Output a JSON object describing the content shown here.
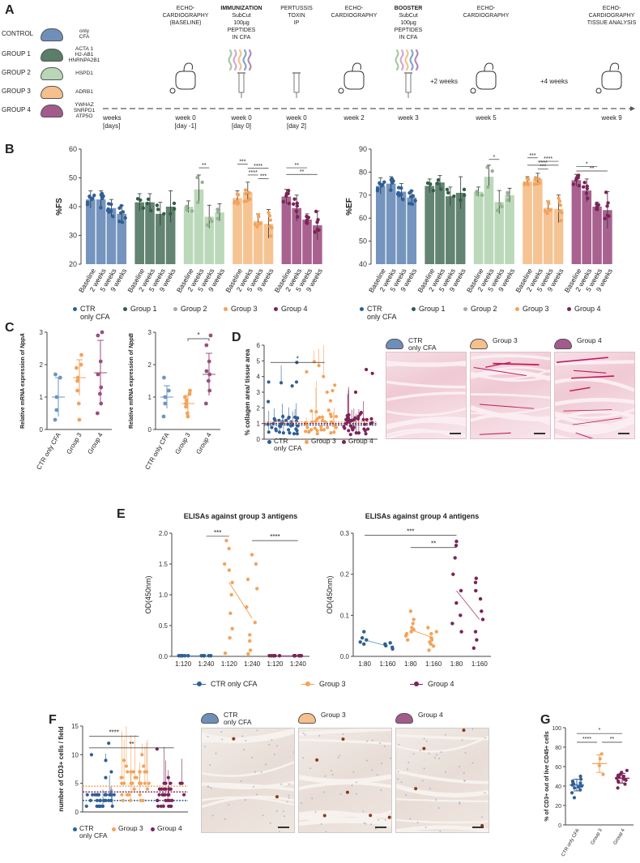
{
  "panel_a": {
    "letter": "A",
    "groups": [
      {
        "name": "CONTROL",
        "antigen": "only\nCFA",
        "color": "#6e8fba"
      },
      {
        "name": "GROUP 1",
        "antigen": "ACTA 1\nH2-AB1\nHNRNPA2B1",
        "color": "#5b7d6a"
      },
      {
        "name": "GROUP 2",
        "antigen": "HSPD1",
        "color": "#b7d7b6"
      },
      {
        "name": "GROUP 3",
        "antigen": "ADRB1",
        "color": "#f5c08c"
      },
      {
        "name": "GROUP 4",
        "antigen": "YWHAZ\nSNRPD1\nATP5O",
        "color": "#a45a8a"
      }
    ],
    "timeline": [
      {
        "header": "ECHO-\nCARDIOGRAPHY\n(BASELINE)",
        "bold": "",
        "label": "week 0\n[day -1]",
        "icon": "echo"
      },
      {
        "header": "SubCut\n100µg\nPEPTIDES\nIN CFA",
        "bold": "IMMUNIZATION",
        "label": "week 0\n[day 0]",
        "icon": "syringe-peptides"
      },
      {
        "header": "PERTUSSIS\nTOXIN\nIP",
        "bold": "",
        "label": "week 0\n[day 2]",
        "icon": "syringe"
      },
      {
        "header": "ECHO-\nCARDIOGRAPHY",
        "bold": "",
        "label": "week 2",
        "icon": "echo"
      },
      {
        "header": "SubCut\n100µg\nPEPTIDES\nIN CFA",
        "bold": "BOOSTER",
        "label": "week 3",
        "icon": "syringe-peptides"
      },
      {
        "header": "ECHO-\nCARDIOGRAPHY",
        "bold": "",
        "label": "week 5",
        "icon": "echo"
      },
      {
        "header": "ECHO-\nCARDIOGRAPHY\n\nTISSUE ANALYSIS",
        "bold": "",
        "label": "week 9",
        "icon": "echo"
      }
    ],
    "axis_label": "weeks\n[days]",
    "intervals": [
      "+2 weeks",
      "+4 weeks"
    ]
  },
  "panel_b": {
    "letter": "B",
    "legend": [
      {
        "label": "CTR\nonly CFA",
        "color": "#2f5f97"
      },
      {
        "label": "Group 1",
        "color": "#2f6045"
      },
      {
        "label": "Group 2",
        "color": "#a7a7a7"
      },
      {
        "label": "Group 3",
        "color": "#f3a35a"
      },
      {
        "label": "Group 4",
        "color": "#7c2457"
      }
    ],
    "timepoints": [
      "Baseline",
      "2 weeks",
      "5 weeks",
      "9 weeks"
    ]
  },
  "chart_data": [
    {
      "id": "fs",
      "type": "bar",
      "title": "",
      "ylabel": "%FS",
      "ylim": [
        20,
        60
      ],
      "yticks": [
        20,
        30,
        40,
        50,
        60
      ],
      "categories": [
        "Baseline",
        "2 weeks",
        "5 weeks",
        "9 weeks"
      ],
      "series": [
        {
          "name": "CTR only CFA",
          "color": "#6e8fba",
          "dot": "#2f5f97",
          "values": [
            42.5,
            42.5,
            39.5,
            37.5
          ],
          "sd": [
            3,
            3,
            3,
            3
          ]
        },
        {
          "name": "Group 1",
          "color": "#5b7d6a",
          "dot": "#2f6045",
          "values": [
            41.5,
            41.5,
            37.5,
            40
          ],
          "sd": [
            3,
            3,
            4,
            5.5
          ]
        },
        {
          "name": "Group 2",
          "color": "#b7d7b6",
          "dot": "#96b394",
          "values": [
            40,
            46,
            36.5,
            38
          ],
          "sd": [
            2,
            5,
            4,
            3
          ]
        },
        {
          "name": "Group 3",
          "color": "#f5c08c",
          "dot": "#f3a35a",
          "values": [
            43,
            45,
            35,
            34
          ],
          "sd": [
            2.5,
            3.5,
            2.5,
            5
          ]
        },
        {
          "name": "Group 4",
          "color": "#a45a8a",
          "dot": "#7c2457",
          "values": [
            43.5,
            39.5,
            35.5,
            33.5
          ],
          "sd": [
            2.5,
            4.5,
            2,
            5
          ]
        }
      ],
      "significance": [
        {
          "group": 2,
          "from": 1,
          "to": 2,
          "level": 53.5,
          "label": "**"
        },
        {
          "group": 3,
          "from": 0,
          "to": 1,
          "level": 54.8,
          "label": "***"
        },
        {
          "group": 3,
          "from": 1,
          "to": 3,
          "level": 53.3,
          "label": "****"
        },
        {
          "group": 3,
          "from": 1,
          "to": 2,
          "level": 51.0,
          "label": "****"
        },
        {
          "group": 3,
          "from": 2,
          "to": 3,
          "level": 49.7,
          "label": "***"
        },
        {
          "group": 4,
          "from": 0,
          "to": 2,
          "level": 53.5,
          "label": "**"
        },
        {
          "group": 4,
          "from": 0,
          "to": 3,
          "level": 51.2,
          "label": "**"
        }
      ]
    },
    {
      "id": "ef",
      "type": "bar",
      "title": "",
      "ylabel": "%EF",
      "ylim": [
        40,
        90
      ],
      "yticks": [
        40,
        50,
        60,
        70,
        80,
        90
      ],
      "categories": [
        "Baseline",
        "2 weeks",
        "5 weeks",
        "9 weeks"
      ],
      "series": [
        {
          "name": "CTR only CFA",
          "color": "#6e8fba",
          "dot": "#2f5f97",
          "values": [
            74,
            75,
            71.5,
            69
          ],
          "sd": [
            3.5,
            3,
            3.5,
            3
          ]
        },
        {
          "name": "Group 1",
          "color": "#5b7d6a",
          "dot": "#2f6045",
          "values": [
            74,
            75.5,
            69.5,
            71
          ],
          "sd": [
            3,
            3,
            4,
            7
          ]
        },
        {
          "name": "Group 2",
          "color": "#b7d7b6",
          "dot": "#96b394",
          "values": [
            71.5,
            78,
            67,
            70
          ],
          "sd": [
            2,
            5,
            5,
            3
          ]
        },
        {
          "name": "Group 3",
          "color": "#f5c08c",
          "dot": "#f3a35a",
          "values": [
            76,
            77,
            64.5,
            64
          ],
          "sd": [
            2,
            2.5,
            3,
            6
          ]
        },
        {
          "name": "Group 4",
          "color": "#a45a8a",
          "dot": "#7c2457",
          "values": [
            76.5,
            72,
            65,
            63.5
          ],
          "sd": [
            2.5,
            5,
            2,
            8
          ]
        }
      ],
      "significance": [
        {
          "group": 2,
          "from": 1,
          "to": 2,
          "level": 85.5,
          "label": "*"
        },
        {
          "group": 3,
          "from": 0,
          "to": 1,
          "level": 86.2,
          "label": "***"
        },
        {
          "group": 3,
          "from": 1,
          "to": 3,
          "level": 84.7,
          "label": "****"
        },
        {
          "group": 3,
          "from": 0,
          "to": 3,
          "level": 83.0,
          "label": "****"
        },
        {
          "group": 3,
          "from": 1,
          "to": 2,
          "level": 81.3,
          "label": "***"
        },
        {
          "group": 4,
          "from": 0,
          "to": 2,
          "level": 82.5,
          "label": "*"
        },
        {
          "group": 4,
          "from": 0,
          "to": 3,
          "level": 80.5,
          "label": "**"
        }
      ]
    },
    {
      "id": "nppa",
      "type": "scatter",
      "ylabel": "Relative mRNA expression of NppA",
      "ylabel_prefix": "Relative mRNA expression of ",
      "ylabel_gene": "NppA",
      "ylim": [
        0,
        3
      ],
      "yticks": [
        0,
        1,
        2,
        3
      ],
      "categories": [
        "CTR only CFA",
        "Group 3",
        "Group 4"
      ],
      "series": [
        {
          "name": "CTR only CFA",
          "color": "#6b95c3",
          "points": [
            0.3,
            0.6,
            1.0,
            1.6,
            1.7
          ],
          "mean": 1.0,
          "sd": 0.6
        },
        {
          "name": "Group 3",
          "color": "#f3a35a",
          "points": [
            0.3,
            0.8,
            1.2,
            1.5,
            1.6,
            1.9,
            2.0,
            2.3
          ],
          "mean": 1.6,
          "sd": 0.55
        },
        {
          "name": "Group 4",
          "color": "#9a4f7e",
          "points": [
            0.5,
            0.8,
            1.1,
            1.3,
            1.7,
            2.1,
            2.9,
            3.0
          ],
          "mean": 1.75,
          "sd": 1.0
        }
      ],
      "significance": []
    },
    {
      "id": "nppb",
      "type": "scatter",
      "ylabel": "Relative mRNA expression of NppB",
      "ylabel_prefix": "Relative mRNA expression of ",
      "ylabel_gene": "NppB",
      "ylim": [
        0,
        3
      ],
      "yticks": [
        0,
        1,
        2,
        3
      ],
      "categories": [
        "CTR only CFA",
        "Group 3",
        "Group 4"
      ],
      "series": [
        {
          "name": "CTR only CFA",
          "color": "#6b95c3",
          "points": [
            0.4,
            0.8,
            1.0,
            1.2,
            1.6
          ],
          "mean": 1.0,
          "sd": 0.35
        },
        {
          "name": "Group 3",
          "color": "#f3a35a",
          "points": [
            0.4,
            0.5,
            0.7,
            0.8,
            0.9,
            1.0,
            1.1,
            1.2
          ],
          "mean": 0.8,
          "sd": 0.25
        },
        {
          "name": "Group 4",
          "color": "#9a4f7e",
          "points": [
            0.8,
            1.2,
            1.5,
            1.7,
            1.8,
            2.1,
            2.6,
            2.9
          ],
          "mean": 1.7,
          "sd": 0.65
        }
      ],
      "significance": [
        {
          "from": 1,
          "to": 2,
          "level": 2.8,
          "label": "*"
        }
      ]
    },
    {
      "id": "collagen",
      "type": "scatter",
      "ylabel": "% collagen area/ tissue area",
      "ylim": [
        0,
        6
      ],
      "yticks": [
        0,
        1,
        2,
        3,
        4,
        5,
        6
      ],
      "categories": [
        "CTR only CFA",
        "Group 3",
        "Group 4"
      ],
      "series": [
        {
          "name": "CTR only CFA",
          "color": "#2f5f97",
          "mean": 0.9
        },
        {
          "name": "Group 3",
          "color": "#f3a35a",
          "mean": 1.1
        },
        {
          "name": "Group 4",
          "color": "#7c2457",
          "mean": 1.0
        }
      ],
      "significance": [
        {
          "from": 0,
          "to": 1,
          "level": 4.9,
          "label": "*"
        }
      ]
    },
    {
      "id": "elisa3",
      "type": "scatter",
      "title": "ELISAs against group 3 antigens",
      "ylabel": "OD(450nm)",
      "ylim": [
        0,
        2.0
      ],
      "yticks": [
        0.0,
        0.5,
        1.0,
        1.5,
        2.0
      ],
      "tick_labels": [
        "0.0",
        "0.5",
        "1.0",
        "1.5",
        "2.0"
      ],
      "categories": [
        "1:120",
        "1:240",
        "1:120",
        "1:240",
        "1:120",
        "1:240"
      ],
      "series_index": [
        0,
        0,
        1,
        1,
        2,
        2
      ],
      "points": [
        [
          0.01,
          0.01,
          0.01,
          0.01,
          0.01,
          0.01
        ],
        [
          0.01,
          0.01,
          0.01,
          0.01,
          0.01,
          0.01
        ],
        [
          0.05,
          0.3,
          0.45,
          0.7,
          1.0,
          1.2,
          1.4,
          1.5,
          1.75,
          1.88
        ],
        [
          0.04,
          0.1,
          0.25,
          0.35,
          0.55,
          0.8,
          1.1,
          1.25,
          1.5,
          1.65
        ],
        [
          0.01,
          0.01,
          0.01,
          0.01,
          0.01,
          0.01
        ],
        [
          0.01,
          0.01,
          0.01,
          0.01,
          0.01,
          0.01
        ]
      ],
      "means": [
        0.01,
        0.01,
        1.2,
        0.62,
        0.01,
        0.01
      ],
      "significance": [
        {
          "from": 1,
          "to": 2,
          "level": 1.95,
          "label": "***"
        },
        {
          "from": 3,
          "to": 5,
          "level": 1.88,
          "label": "****"
        }
      ]
    },
    {
      "id": "elisa4",
      "type": "scatter",
      "title": "ELISAs against group 4 antigens",
      "ylabel": "OD(450nm)",
      "ylim": [
        0,
        0.3
      ],
      "yticks": [
        0.0,
        0.1,
        0.2,
        0.3
      ],
      "tick_labels": [
        "0.0",
        "0.1",
        "0.2",
        "0.3"
      ],
      "categories": [
        "1:80",
        "1:160",
        "1:80",
        "1:160",
        "1:80",
        "1:160"
      ],
      "series_index": [
        0,
        0,
        1,
        1,
        2,
        2
      ],
      "points": [
        [
          0.03,
          0.035,
          0.04,
          0.045,
          0.06
        ],
        [
          0.018,
          0.022,
          0.026,
          0.03,
          0.033
        ],
        [
          0.04,
          0.05,
          0.055,
          0.06,
          0.065,
          0.07,
          0.08,
          0.09,
          0.11
        ],
        [
          0.015,
          0.025,
          0.03,
          0.035,
          0.04,
          0.045,
          0.055,
          0.06,
          0.07
        ],
        [
          0.06,
          0.08,
          0.1,
          0.13,
          0.16,
          0.2,
          0.24,
          0.27,
          0.28
        ],
        [
          0.02,
          0.04,
          0.06,
          0.09,
          0.11,
          0.14,
          0.16,
          0.18,
          0.19
        ]
      ],
      "means": [
        0.04,
        0.025,
        0.065,
        0.045,
        0.16,
        0.09
      ],
      "significance": [
        {
          "from": 0,
          "to": 4,
          "level": 0.295,
          "label": "***"
        },
        {
          "from": 2,
          "to": 4,
          "level": 0.265,
          "label": "**"
        }
      ]
    },
    {
      "id": "cd3",
      "type": "scatter",
      "ylabel": "number of CD3+ cells / field",
      "ylim": [
        0,
        15
      ],
      "yticks": [
        0,
        5,
        10,
        15
      ],
      "categories": [
        "CTR only CFA",
        "Group 3",
        "Group 4"
      ],
      "series": [
        {
          "name": "CTR only CFA",
          "color": "#2f5f97",
          "mean": 2
        },
        {
          "name": "Group 3",
          "color": "#f3a35a",
          "mean": 4.5
        },
        {
          "name": "Group 4",
          "color": "#7c2457",
          "mean": 3.5
        }
      ],
      "significance": [
        {
          "from": 0,
          "to": 1,
          "level": 13.2,
          "label": "****"
        },
        {
          "from": 0,
          "to": 2,
          "level": 11.2,
          "label": "**"
        }
      ]
    },
    {
      "id": "cd45",
      "type": "scatter",
      "ylabel": "% of CD3+ out of live CD45+ cells",
      "ylim": [
        0,
        100
      ],
      "yticks": [
        0,
        20,
        40,
        60,
        80,
        100
      ],
      "categories": [
        "CTR only CFA",
        "Group 3",
        "Group 4"
      ],
      "series": [
        {
          "name": "CTR only CFA",
          "color": "#2f5f97",
          "points": [
            28,
            33,
            36,
            38,
            39,
            40,
            41,
            42,
            43,
            44,
            45,
            47,
            50
          ],
          "mean": 41,
          "sd": 6
        },
        {
          "name": "Group 3",
          "color": "#f3a35a",
          "points": [
            52,
            61,
            68,
            73
          ],
          "mean": 63,
          "sd": 9
        },
        {
          "name": "Group 4",
          "color": "#7c2457",
          "points": [
            38,
            42,
            44,
            45,
            46,
            47,
            48,
            49,
            50,
            51,
            52,
            54,
            56
          ],
          "mean": 48,
          "sd": 5
        }
      ],
      "significance": [
        {
          "from": 0,
          "to": 2,
          "level": 94,
          "label": "*"
        },
        {
          "from": 0,
          "to": 1,
          "level": 85,
          "label": "****"
        },
        {
          "from": 1,
          "to": 2,
          "level": 85,
          "label": "**"
        }
      ]
    }
  ],
  "panel_c": {
    "letter": "C"
  },
  "panel_d": {
    "letter": "D",
    "legend": [
      {
        "label": "CTR\nonly CFA",
        "color": "#2f5f97"
      },
      {
        "label": "Group 3",
        "color": "#f3a35a"
      },
      {
        "label": "Group 4",
        "color": "#7c2457"
      }
    ],
    "images": [
      {
        "label": "CTR\nonly CFA",
        "mouse_color": "#6e8fba"
      },
      {
        "label": "Group 3",
        "mouse_color": "#f5c08c"
      },
      {
        "label": "Group 4",
        "mouse_color": "#a45a8a"
      }
    ]
  },
  "panel_e": {
    "letter": "E",
    "legend": [
      {
        "label": "CTR only CFA",
        "color": "#2f5f97"
      },
      {
        "label": "Group 3",
        "color": "#f3a35a"
      },
      {
        "label": "Group 4",
        "color": "#7c2457"
      }
    ]
  },
  "panel_f": {
    "letter": "F",
    "legend": [
      {
        "label": "CTR\nonly CFA",
        "color": "#2f5f97"
      },
      {
        "label": "Group 3",
        "color": "#f3a35a"
      },
      {
        "label": "Group 4",
        "color": "#7c2457"
      }
    ],
    "images": [
      {
        "label": "CTR\nonly CFA",
        "mouse_color": "#6e8fba"
      },
      {
        "label": "Group 3",
        "mouse_color": "#f5c08c"
      },
      {
        "label": "Group 4",
        "mouse_color": "#a45a8a"
      }
    ]
  },
  "panel_g": {
    "letter": "G"
  }
}
